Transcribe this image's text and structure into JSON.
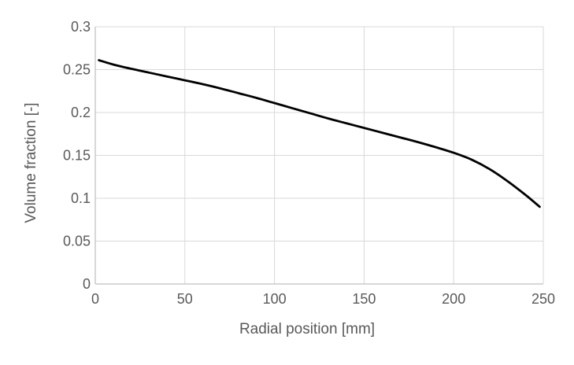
{
  "chart_data": {
    "type": "line",
    "title": "",
    "xlabel": "Radial position [mm]",
    "ylabel": "Volume fraction [-]",
    "xlim": [
      0,
      250
    ],
    "ylim": [
      0,
      0.3
    ],
    "xticks": [
      "0",
      "50",
      "100",
      "150",
      "200",
      "250"
    ],
    "yticks": [
      "0",
      "0.05",
      "0.1",
      "0.15",
      "0.2",
      "0.25",
      "0.3"
    ],
    "grid": true,
    "legend": "none",
    "colors": {
      "line": "#000000",
      "grid": "#d9d9d9",
      "axis": "#bfbfbf",
      "text": "#595959"
    },
    "series": [
      {
        "x": [
          2,
          10,
          20,
          30,
          40,
          50,
          60,
          70,
          80,
          90,
          100,
          110,
          120,
          130,
          140,
          150,
          160,
          170,
          180,
          190,
          200,
          210,
          220,
          230,
          240,
          248
        ],
        "y": [
          0.261,
          0.256,
          0.251,
          0.2465,
          0.242,
          0.2375,
          0.233,
          0.228,
          0.2225,
          0.217,
          0.211,
          0.205,
          0.199,
          0.193,
          0.1875,
          0.182,
          0.1765,
          0.171,
          0.1655,
          0.1595,
          0.153,
          0.145,
          0.134,
          0.12,
          0.104,
          0.09
        ]
      }
    ]
  }
}
